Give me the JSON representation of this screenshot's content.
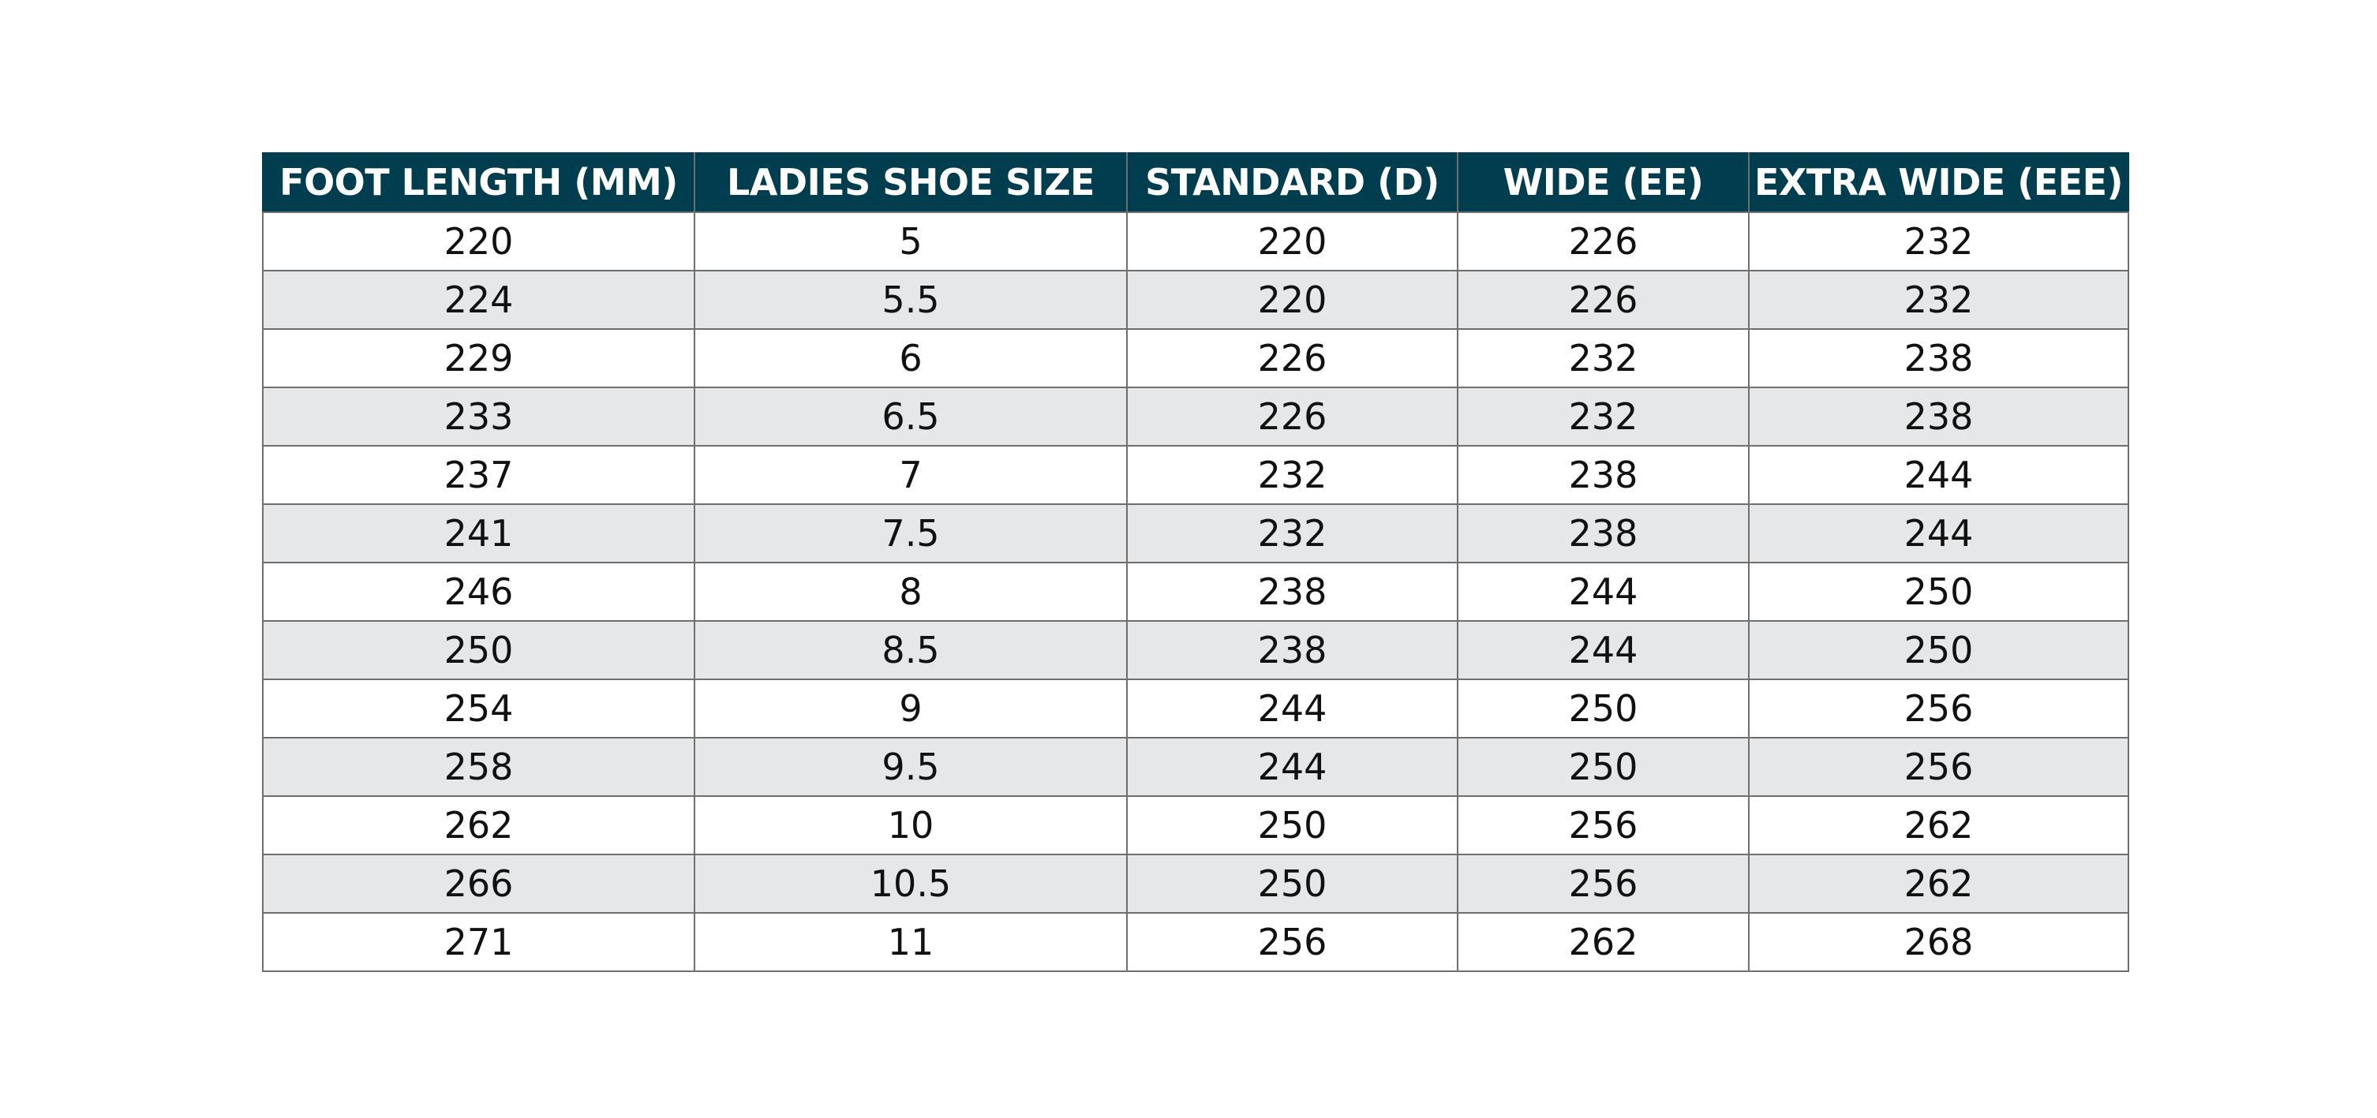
{
  "table": {
    "header": [
      "FOOT LENGTH (MM)",
      "LADIES SHOE SIZE",
      "STANDARD (D)",
      "WIDE (EE)",
      "EXTRA WIDE (EEE)"
    ],
    "rows": [
      [
        220,
        5,
        220,
        226,
        232
      ],
      [
        224,
        5.5,
        220,
        226,
        232
      ],
      [
        229,
        6,
        226,
        232,
        238
      ],
      [
        233,
        6.5,
        226,
        232,
        238
      ],
      [
        237,
        7,
        232,
        238,
        244
      ],
      [
        241,
        7.5,
        232,
        238,
        244
      ],
      [
        246,
        8,
        238,
        244,
        250
      ],
      [
        250,
        8.5,
        238,
        244,
        250
      ],
      [
        254,
        9,
        244,
        250,
        256
      ],
      [
        258,
        9.5,
        244,
        250,
        256
      ],
      [
        262,
        10,
        250,
        256,
        262
      ],
      [
        266,
        10.5,
        250,
        256,
        262
      ],
      [
        271,
        11,
        256,
        262,
        268
      ]
    ]
  }
}
